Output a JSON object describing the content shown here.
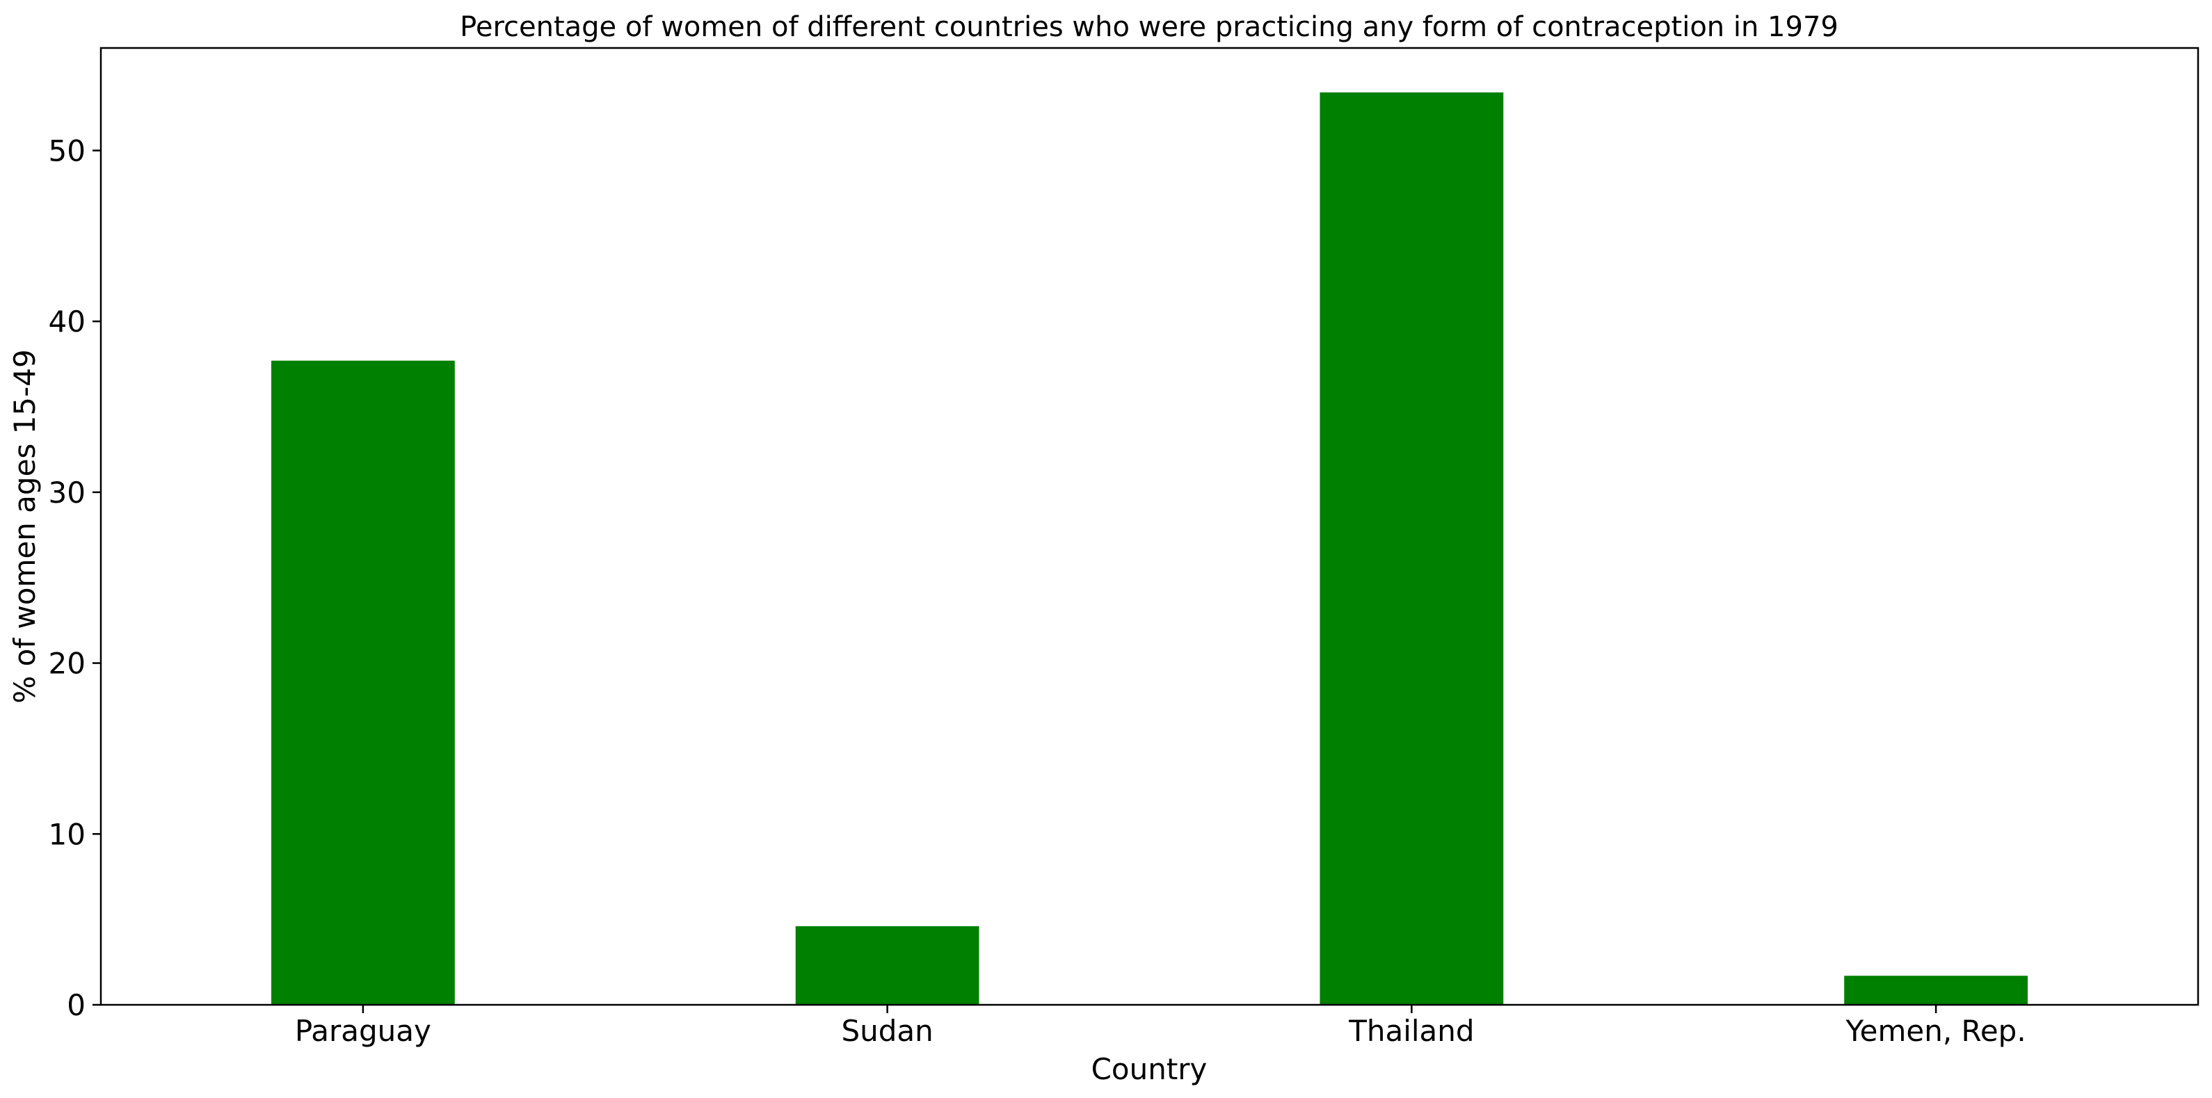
{
  "chart_data": {
    "type": "bar",
    "title": "Percentage of women of different countries who were practicing any form of contraception in 1979",
    "xlabel": "Country",
    "ylabel": "% of women ages 15-49",
    "categories": [
      "Paraguay",
      "Sudan",
      "Thailand",
      "Yemen, Rep."
    ],
    "values": [
      37.7,
      4.6,
      53.4,
      1.7
    ],
    "ylim": [
      0,
      56
    ],
    "yticks": [
      0,
      10,
      20,
      30,
      40,
      50
    ],
    "bar_color": "#008000",
    "grid": false,
    "legend": "none"
  }
}
